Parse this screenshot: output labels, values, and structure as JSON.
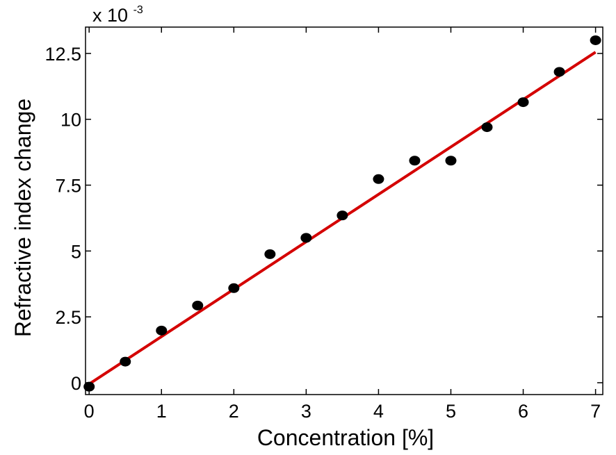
{
  "chart_data": {
    "type": "scatter",
    "title": "",
    "xlabel": "Concentration [%]",
    "ylabel": "Refractive index change",
    "y_multiplier_label": {
      "base": "x 10",
      "exponent": "-3"
    },
    "xlim": [
      -0.05,
      7.1
    ],
    "ylim": [
      -0.45,
      13.5
    ],
    "x_ticks": [
      0,
      1,
      2,
      3,
      4,
      5,
      6,
      7
    ],
    "x_tick_labels": [
      "0",
      "1",
      "2",
      "3",
      "4",
      "5",
      "6",
      "7"
    ],
    "y_ticks": [
      0,
      2.5,
      5,
      7.5,
      10,
      12.5
    ],
    "y_tick_labels": [
      "0",
      "2.5",
      "5",
      "7.5",
      "10",
      "12.5"
    ],
    "grid": false,
    "legend": "none",
    "series": [
      {
        "kind": "points",
        "color": "#000000",
        "x": [
          0,
          0.5,
          1,
          1.5,
          2,
          2.5,
          3,
          3.5,
          4,
          4.5,
          5,
          5.5,
          6,
          6.5,
          7
        ],
        "y": [
          -0.15,
          0.8,
          1.98,
          2.93,
          3.59,
          4.88,
          5.5,
          6.35,
          7.73,
          8.43,
          8.43,
          9.7,
          10.65,
          11.8,
          13.0
        ]
      },
      {
        "kind": "fit-line",
        "color": "#d40000",
        "x": [
          0,
          7
        ],
        "y": [
          -0.05,
          12.55
        ]
      }
    ]
  }
}
